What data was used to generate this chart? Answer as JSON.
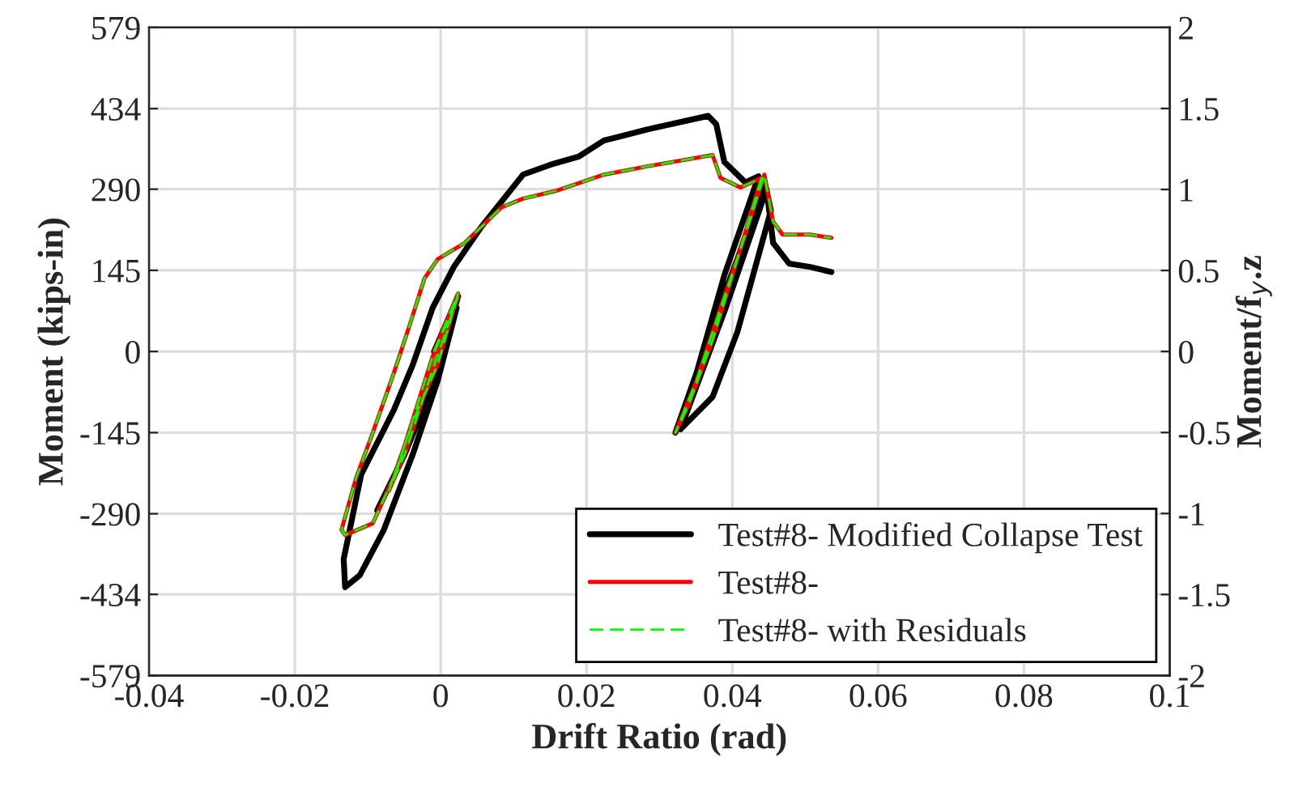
{
  "chart_data": {
    "type": "line",
    "xlabel": "Drift Ratio (rad)",
    "ylabel": "Moment (kips-in)",
    "y2label": "Moment/f$_{y}$.z",
    "xlim": [
      -0.04,
      0.1
    ],
    "xticks": [
      -0.04,
      -0.02,
      0,
      0.02,
      0.04,
      0.06,
      0.08,
      0.1
    ],
    "ylim": [
      -579,
      579
    ],
    "yticks": [
      -579,
      -434,
      -290,
      -145,
      0,
      145,
      290,
      434,
      579
    ],
    "y2lim": [
      -2,
      2
    ],
    "y2ticks": [
      -2,
      -1.5,
      -1,
      -0.5,
      0,
      0.5,
      1,
      1.5,
      2
    ],
    "grid": true,
    "legend": "bottom right",
    "series": [
      {
        "name": "Test#8- Modified Collapse Test",
        "color": "#000000",
        "line_style": "solid",
        "x": [
          -0.0009,
          0.0024,
          0.0007,
          -0.0022,
          -0.0049,
          -0.0087,
          -0.006,
          -0.0016,
          0.0022,
          -0.0004,
          -0.0038,
          -0.0078,
          -0.0111,
          -0.0131,
          -0.0133,
          -0.0109,
          -0.0064,
          -0.0038,
          -0.0011,
          0.0018,
          0.0056,
          0.0113,
          0.0151,
          0.0189,
          0.0224,
          0.0284,
          0.0367,
          0.0378,
          0.0389,
          0.0418,
          0.0436,
          0.0389,
          0.0351,
          0.0322,
          0.034,
          0.0373,
          0.0407,
          0.0444,
          0.0453,
          0.0407,
          0.0373,
          0.0329,
          0.0391,
          0.0447,
          0.0456,
          0.0478,
          0.0507,
          0.0536
        ],
        "values": [
          0,
          99,
          20,
          -96,
          -183,
          -284,
          -212,
          -67,
          78,
          -52,
          -183,
          -319,
          -400,
          -421,
          -371,
          -220,
          -104,
          -23,
          78,
          151,
          223,
          316,
          334,
          348,
          377,
          397,
          421,
          406,
          339,
          302,
          313,
          136,
          -38,
          -145,
          -81,
          49,
          165,
          305,
          252,
          35,
          -81,
          -139,
          78,
          290,
          194,
          157,
          151,
          142
        ]
      },
      {
        "name": "Test#8-",
        "color": "#ff0000",
        "line_style": "solid",
        "x": [
          -0.0009,
          0.0024,
          -0.0004,
          -0.0038,
          -0.0071,
          -0.0049,
          -0.0016,
          0.0024,
          -0.0011,
          -0.006,
          -0.0093,
          -0.0131,
          -0.0136,
          -0.0116,
          -0.0093,
          -0.0064,
          -0.0042,
          -0.0022,
          -0.0004,
          0.0033,
          0.0084,
          0.0113,
          0.0158,
          0.0224,
          0.0284,
          0.0373,
          0.0384,
          0.0411,
          0.044,
          0.0407,
          0.0373,
          0.034,
          0.0322,
          0.0351,
          0.0384,
          0.0418,
          0.0444,
          0.0456,
          0.0469,
          0.0507,
          0.0536
        ],
        "values": [
          0,
          104,
          -23,
          -125,
          -249,
          -183,
          -52,
          99,
          -9,
          -212,
          -307,
          -328,
          -319,
          -226,
          -145,
          -38,
          49,
          131,
          165,
          194,
          258,
          273,
          287,
          316,
          331,
          351,
          310,
          293,
          310,
          165,
          20,
          -96,
          -145,
          -52,
          78,
          209,
          316,
          232,
          209,
          209,
          203
        ]
      },
      {
        "name": "Test#8- with Residuals",
        "color": "#00ff00",
        "line_style": "dashed",
        "x": [
          -0.0009,
          0.0024,
          -0.0004,
          -0.0038,
          -0.0071,
          -0.0049,
          -0.0016,
          0.0024,
          -0.0011,
          -0.006,
          -0.0093,
          -0.0131,
          -0.0136,
          -0.0116,
          -0.0093,
          -0.0064,
          -0.0042,
          -0.0022,
          -0.0004,
          0.0033,
          0.0084,
          0.0113,
          0.0158,
          0.0224,
          0.0284,
          0.0373,
          0.0384,
          0.0411,
          0.044,
          0.0407,
          0.0373,
          0.034,
          0.0322,
          0.0351,
          0.0384,
          0.0418,
          0.0444,
          0.0456,
          0.0469,
          0.0507,
          0.0536
        ],
        "values": [
          0,
          104,
          -23,
          -125,
          -249,
          -183,
          -52,
          99,
          -9,
          -212,
          -307,
          -328,
          -319,
          -226,
          -145,
          -38,
          49,
          131,
          165,
          194,
          258,
          273,
          287,
          316,
          331,
          351,
          310,
          293,
          310,
          165,
          20,
          -96,
          -145,
          -52,
          78,
          209,
          316,
          232,
          209,
          209,
          203
        ]
      }
    ]
  }
}
